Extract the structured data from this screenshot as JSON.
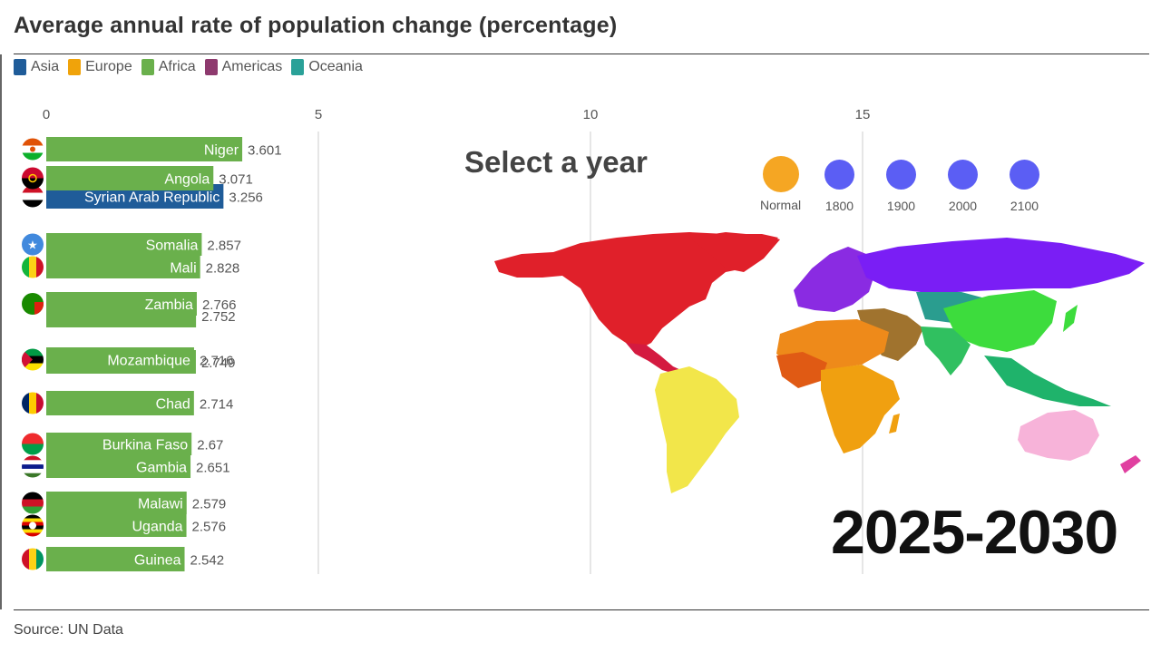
{
  "header": {
    "title": "Average annual rate of population change (percentage)"
  },
  "legend": [
    {
      "label": "Asia",
      "color": "#1f5c99"
    },
    {
      "label": "Europe",
      "color": "#f0a30a"
    },
    {
      "label": "Africa",
      "color": "#6ab04c"
    },
    {
      "label": "Americas",
      "color": "#8e3a6e"
    },
    {
      "label": "Oceania",
      "color": "#2aa198"
    }
  ],
  "overlay": {
    "select_label": "Select a year",
    "year_buttons": [
      {
        "label": "Normal",
        "color": "#f5a623"
      },
      {
        "label": "1800",
        "color": "#5b5ef4"
      },
      {
        "label": "1900",
        "color": "#5b5ef4"
      },
      {
        "label": "2000",
        "color": "#5b5ef4"
      },
      {
        "label": "2100",
        "color": "#5b5ef4"
      }
    ],
    "current_period": "2025-2030"
  },
  "footer": {
    "source": "Source: UN Data"
  },
  "chart_data": {
    "type": "bar",
    "orientation": "horizontal",
    "x_ticks": [
      0,
      5,
      10,
      15
    ],
    "xlim": [
      0,
      20
    ],
    "grid": true,
    "bars": [
      {
        "name": "Niger",
        "value": 3.601,
        "label": "3.601",
        "region": "Africa",
        "flag": "niger"
      },
      {
        "name": "Angola",
        "value": 3.071,
        "label": "3.071",
        "region": "Africa",
        "flag": "angola"
      },
      {
        "name": "Syrian Arab Republic",
        "value": 3.256,
        "label": "3.256",
        "region": "Asia",
        "flag": "syria"
      },
      {
        "name": "Somalia",
        "value": 2.857,
        "label": "2.857",
        "region": "Africa",
        "flag": "somalia"
      },
      {
        "name": "Mali",
        "value": 2.828,
        "label": "2.828",
        "region": "Africa",
        "flag": "mali"
      },
      {
        "name": "Zambia",
        "value": 2.766,
        "label": "2.766",
        "region": "Africa",
        "flag": "zambia"
      },
      {
        "name": "",
        "value": 2.752,
        "label": "2.752",
        "region": "Africa",
        "flag": "none"
      },
      {
        "name": "Mozambique",
        "value": 2.716,
        "label": "2.716",
        "region": "Africa",
        "flag": "mozambique"
      },
      {
        "name": "",
        "value": 2.749,
        "label": "2.749",
        "region": "Africa",
        "flag": "none"
      },
      {
        "name": "Chad",
        "value": 2.714,
        "label": "2.714",
        "region": "Africa",
        "flag": "chad"
      },
      {
        "name": "Burkina Faso",
        "value": 2.67,
        "label": "2.67",
        "region": "Africa",
        "flag": "burkina"
      },
      {
        "name": "Gambia",
        "value": 2.651,
        "label": "2.651",
        "region": "Africa",
        "flag": "gambia"
      },
      {
        "name": "Malawi",
        "value": 2.579,
        "label": "2.579",
        "region": "Africa",
        "flag": "malawi"
      },
      {
        "name": "Uganda",
        "value": 2.576,
        "label": "2.576",
        "region": "Africa",
        "flag": "uganda"
      },
      {
        "name": "Guinea",
        "value": 2.542,
        "label": "2.542",
        "region": "Africa",
        "flag": "guinea"
      }
    ]
  }
}
